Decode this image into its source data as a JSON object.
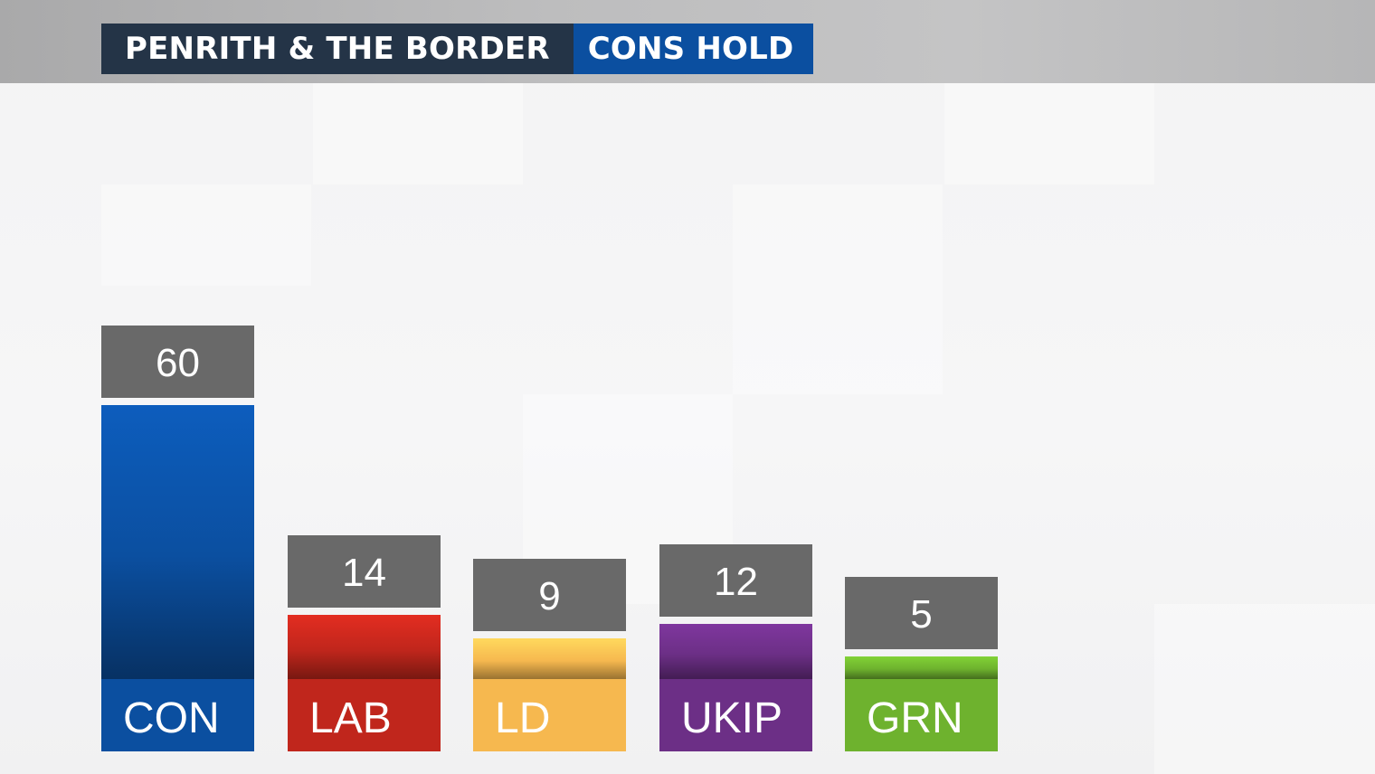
{
  "header": {
    "constituency": "PENRITH & THE BORDER",
    "result": "CONS HOLD",
    "title_color": "#243447",
    "result_color": "#0b4fa0"
  },
  "chart_data": {
    "type": "bar",
    "title": "",
    "xlabel": "",
    "ylabel": "",
    "categories": [
      "CON",
      "LAB",
      "LD",
      "UKIP",
      "GRN"
    ],
    "values": [
      60,
      14,
      9,
      12,
      5
    ],
    "colors": [
      "#0b4fa0",
      "#c0261c",
      "#f6b84f",
      "#6c2f86",
      "#6eb22e"
    ],
    "grid": false,
    "legend": "none"
  }
}
